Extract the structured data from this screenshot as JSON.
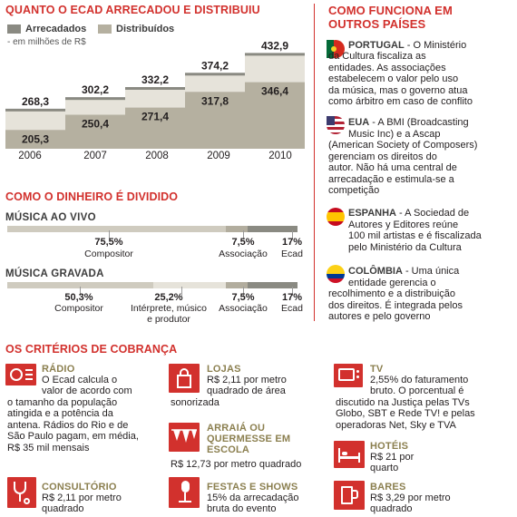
{
  "chart_title": "QUANTO O ECAD ARRECADOU E DISTRIBUIU",
  "legend": {
    "arrecadados": "Arrecadados",
    "distribuidos": "Distribuídos",
    "unit": "- em milhões de R$"
  },
  "colors": {
    "red": "#d2312d",
    "arrecadados": "#8a8a82",
    "distribuidos": "#b5b0a0",
    "band": "#e6e3da",
    "olive": "#8b7f4f"
  },
  "chart_data": {
    "type": "area",
    "categories": [
      "2006",
      "2007",
      "2008",
      "2009",
      "2010"
    ],
    "series": [
      {
        "name": "Arrecadados",
        "values": [
          268.3,
          302.2,
          332.2,
          374.2,
          432.9
        ]
      },
      {
        "name": "Distribuídos",
        "values": [
          205.3,
          250.4,
          271.4,
          317.8,
          346.4
        ]
      }
    ],
    "value_labels": {
      "arrecadados": [
        "268,3",
        "302,2",
        "332,2",
        "374,2",
        "432,9"
      ],
      "distribuidos": [
        "205,3",
        "250,4",
        "271,4",
        "317,8",
        "346,4"
      ]
    }
  },
  "division": {
    "title": "COMO O DINHEIRO É DIVIDIDO",
    "ao_vivo": {
      "title": "MÚSICA AO VIVO",
      "items": [
        {
          "pct": "75,5%",
          "label": "Compositor",
          "value": 75.5
        },
        {
          "pct": "7,5%",
          "label": "Associação",
          "value": 7.5
        },
        {
          "pct": "17%",
          "label": "Ecad",
          "value": 17
        }
      ]
    },
    "gravada": {
      "title": "MÚSICA GRAVADA",
      "items": [
        {
          "pct": "50,3%",
          "label": "Compositor",
          "value": 50.3
        },
        {
          "pct": "25,2%",
          "label": "Intérprete, músico e produtor",
          "label1": "Intérprete, músico",
          "label2": "e produtor",
          "value": 25.2
        },
        {
          "pct": "7,5%",
          "label": "Associação",
          "value": 7.5
        },
        {
          "pct": "17%",
          "label": "Ecad",
          "value": 17
        }
      ]
    }
  },
  "countries": {
    "title1": "COMO FUNCIONA EM",
    "title2": "OUTROS PAÍSES",
    "items": [
      {
        "name": "PORTUGAL",
        "lines": [
          " - O Ministério",
          "da Cultura fiscaliza as",
          "entidades. As associações",
          "estabelecem o valor pelo uso",
          "da música, mas o governo atua",
          "como árbitro em caso de conflito"
        ]
      },
      {
        "name": "EUA",
        "lines": [
          " - A BMI (Broadcasting",
          "Music Inc) e a Ascap",
          "(American Society of Composers)",
          "gerenciam os direitos do",
          "autor. Não há uma central de",
          "arrecadação e estimula-se a",
          "competição"
        ]
      },
      {
        "name": "ESPANHA",
        "lines": [
          " - A Sociedad de",
          "Autores y Editores reúne",
          "100 mil artistas e é fiscalizada",
          "pelo Ministério da Cultura"
        ]
      },
      {
        "name": "COLÔMBIA",
        "lines": [
          " - Uma única",
          "entidade gerencia o",
          "recolhimento e a distribuição",
          "dos direitos. É integrada pelos",
          "autores e pelo governo"
        ]
      }
    ]
  },
  "criteria": {
    "title": "OS CRITÉRIOS DE COBRANÇA",
    "radio": {
      "title": "RÁDIO",
      "lines": [
        "O Ecad calcula o",
        "valor de acordo com",
        "o tamanho da população",
        "atingida e a potência da",
        "antena. Rádios do Rio e de",
        "São Paulo pagam, em média,",
        "R$ 35 mil mensais"
      ]
    },
    "lojas": {
      "title": "LOJAS",
      "lines": [
        "R$ 2,11 por metro",
        "quadrado de área",
        "sonorizada"
      ]
    },
    "tv": {
      "title": "TV",
      "lines": [
        "2,55% do faturamento",
        "bruto. O porcentual é",
        "discutido na Justiça pelas TVs",
        "Globo, SBT e Rede TV! e pelas",
        "operadoras Net, Sky e TVA"
      ]
    },
    "arraia": {
      "title1": "ARRAIÁ OU",
      "title2": "QUERMESSE EM",
      "title3": "ESCOLA",
      "text": "R$ 12,73 por metro quadrado"
    },
    "hoteis": {
      "title": "HOTÉIS",
      "lines": [
        "R$ 21 por",
        "quarto"
      ]
    },
    "consultorio": {
      "title": "CONSULTÓRIO",
      "lines": [
        "R$ 2,11 por metro",
        "quadrado"
      ]
    },
    "festas": {
      "title": "FESTAS E SHOWS",
      "lines": [
        "15% da arrecadação",
        "bruta do evento"
      ]
    },
    "bares": {
      "title": "BARES",
      "lines": [
        "R$ 3,29 por metro",
        "quadrado"
      ]
    }
  }
}
